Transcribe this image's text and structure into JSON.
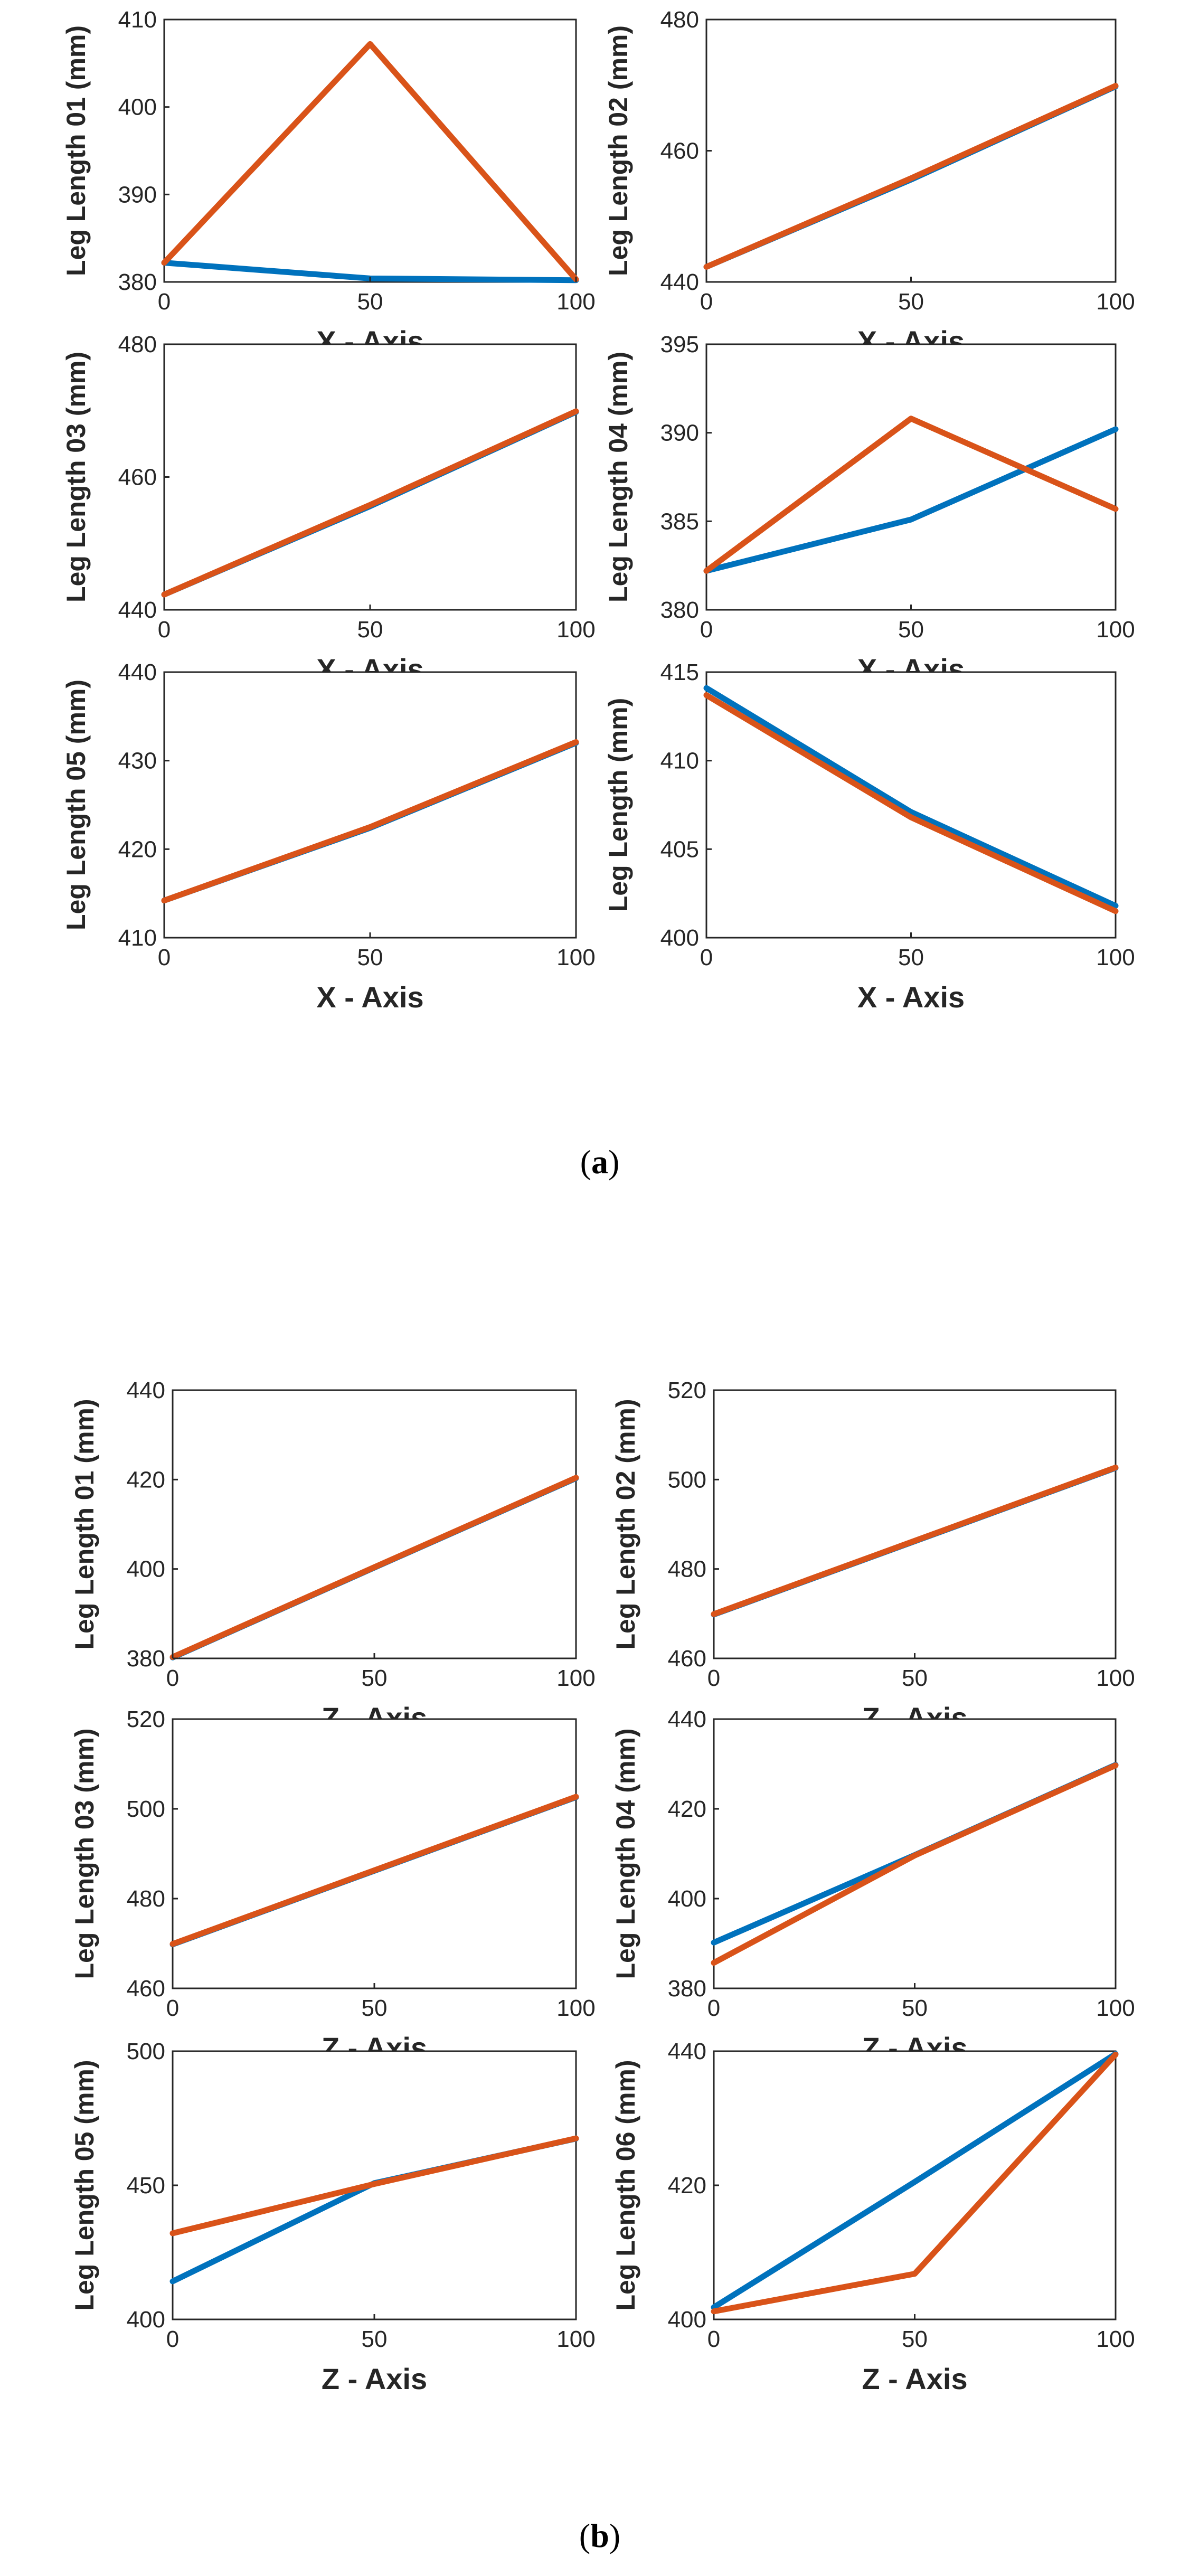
{
  "colors": {
    "series_1": "#0072BD",
    "series_2": "#D95319",
    "axis": "#262626"
  },
  "captions": {
    "a_letter": "a",
    "b_letter": "b"
  },
  "chart_data": [
    {
      "id": "a1",
      "type": "line",
      "xlabel": "X - Axis",
      "ylabel": "Leg Length 01 (mm)",
      "xlim": [
        0,
        100
      ],
      "ylim": [
        380,
        410
      ],
      "xticks": [
        0,
        50,
        100
      ],
      "yticks": [
        380,
        390,
        400,
        410
      ],
      "x": [
        0,
        50,
        100
      ],
      "series": [
        {
          "name": "series_1",
          "values": [
            382.2,
            380.4,
            380.2
          ]
        },
        {
          "name": "series_2",
          "values": [
            382.2,
            407.2,
            380.3
          ]
        }
      ]
    },
    {
      "id": "a2",
      "type": "line",
      "xlabel": "X - Axis",
      "ylabel": "Leg Length 02 (mm)",
      "xlim": [
        0,
        100
      ],
      "ylim": [
        440,
        480
      ],
      "xticks": [
        0,
        50,
        100
      ],
      "yticks": [
        440,
        460,
        480
      ],
      "x": [
        0,
        50,
        100
      ],
      "series": [
        {
          "name": "series_1",
          "values": [
            442.3,
            455.6,
            469.8
          ]
        },
        {
          "name": "series_2",
          "values": [
            442.3,
            455.8,
            469.9
          ]
        }
      ]
    },
    {
      "id": "a3",
      "type": "line",
      "xlabel": "X - Axis",
      "ylabel": "Leg Length 03 (mm)",
      "xlim": [
        0,
        100
      ],
      "ylim": [
        440,
        480
      ],
      "xticks": [
        0,
        50,
        100
      ],
      "yticks": [
        440,
        460,
        480
      ],
      "x": [
        0,
        50,
        100
      ],
      "series": [
        {
          "name": "series_1",
          "values": [
            442.3,
            455.6,
            469.8
          ]
        },
        {
          "name": "series_2",
          "values": [
            442.3,
            455.8,
            469.9
          ]
        }
      ]
    },
    {
      "id": "a4",
      "type": "line",
      "xlabel": "X - Axis",
      "ylabel": "Leg Length 04 (mm)",
      "xlim": [
        0,
        100
      ],
      "ylim": [
        380,
        395
      ],
      "xticks": [
        0,
        50,
        100
      ],
      "yticks": [
        380,
        385,
        390,
        395
      ],
      "x": [
        0,
        50,
        100
      ],
      "series": [
        {
          "name": "series_1",
          "values": [
            382.2,
            385.1,
            390.2
          ]
        },
        {
          "name": "series_2",
          "values": [
            382.2,
            390.8,
            385.7
          ]
        }
      ]
    },
    {
      "id": "a5",
      "type": "line",
      "xlabel": "X - Axis",
      "ylabel": "Leg Length 05 (mm)",
      "xlim": [
        0,
        100
      ],
      "ylim": [
        410,
        440
      ],
      "xticks": [
        0,
        50,
        100
      ],
      "yticks": [
        410,
        420,
        430,
        440
      ],
      "x": [
        0,
        50,
        100
      ],
      "series": [
        {
          "name": "series_1",
          "values": [
            414.2,
            422.4,
            432.0
          ]
        },
        {
          "name": "series_2",
          "values": [
            414.2,
            422.5,
            432.1
          ]
        }
      ]
    },
    {
      "id": "a6",
      "type": "line",
      "xlabel": "X - Axis",
      "ylabel": "Leg Length (mm)",
      "xlim": [
        0,
        100
      ],
      "ylim": [
        400,
        415
      ],
      "xticks": [
        0,
        50,
        100
      ],
      "yticks": [
        400,
        405,
        410,
        415
      ],
      "x": [
        0,
        50,
        100
      ],
      "series": [
        {
          "name": "series_1",
          "values": [
            414.1,
            407.1,
            401.8
          ]
        },
        {
          "name": "series_2",
          "values": [
            413.7,
            406.8,
            401.5
          ]
        }
      ]
    },
    {
      "id": "b1",
      "type": "line",
      "xlabel": "Z - Axis",
      "ylabel": "Leg Length 01 (mm)",
      "xlim": [
        0,
        100
      ],
      "ylim": [
        380,
        440
      ],
      "xticks": [
        0,
        50,
        100
      ],
      "yticks": [
        380,
        400,
        420,
        440
      ],
      "x": [
        0,
        50,
        100
      ],
      "series": [
        {
          "name": "series_1",
          "values": [
            380.2,
            400.3,
            420.3
          ]
        },
        {
          "name": "series_2",
          "values": [
            380.3,
            400.4,
            420.4
          ]
        }
      ]
    },
    {
      "id": "b2",
      "type": "line",
      "xlabel": "Z - Axis",
      "ylabel": "Leg Length 02 (mm)",
      "xlim": [
        0,
        100
      ],
      "ylim": [
        460,
        520
      ],
      "xticks": [
        0,
        50,
        100
      ],
      "yticks": [
        460,
        480,
        500,
        520
      ],
      "x": [
        0,
        50,
        100
      ],
      "series": [
        {
          "name": "series_1",
          "values": [
            469.8,
            486.2,
            502.6
          ]
        },
        {
          "name": "series_2",
          "values": [
            469.9,
            486.3,
            502.7
          ]
        }
      ]
    },
    {
      "id": "b3",
      "type": "line",
      "xlabel": "Z - Axis",
      "ylabel": "Leg Length 03 (mm)",
      "xlim": [
        0,
        100
      ],
      "ylim": [
        460,
        520
      ],
      "xticks": [
        0,
        50,
        100
      ],
      "yticks": [
        460,
        480,
        500,
        520
      ],
      "x": [
        0,
        50,
        100
      ],
      "series": [
        {
          "name": "series_1",
          "values": [
            469.8,
            486.2,
            502.6
          ]
        },
        {
          "name": "series_2",
          "values": [
            469.9,
            486.3,
            502.7
          ]
        }
      ]
    },
    {
      "id": "b4",
      "type": "line",
      "xlabel": "Z - Axis",
      "ylabel": "Leg Length 04 (mm)",
      "xlim": [
        0,
        100
      ],
      "ylim": [
        380,
        440
      ],
      "xticks": [
        0,
        50,
        100
      ],
      "yticks": [
        380,
        400,
        420,
        440
      ],
      "x": [
        0,
        50,
        100
      ],
      "series": [
        {
          "name": "series_1",
          "values": [
            390.2,
            409.7,
            429.8
          ]
        },
        {
          "name": "series_2",
          "values": [
            385.7,
            409.6,
            429.7
          ]
        }
      ]
    },
    {
      "id": "b5",
      "type": "line",
      "xlabel": "Z - Axis",
      "ylabel": "Leg Length 05 (mm)",
      "xlim": [
        0,
        100
      ],
      "ylim": [
        400,
        500
      ],
      "xticks": [
        0,
        50,
        100
      ],
      "yticks": [
        400,
        450,
        500
      ],
      "x": [
        0,
        50,
        100
      ],
      "series": [
        {
          "name": "series_1",
          "values": [
            414.2,
            450.8,
            467.4
          ]
        },
        {
          "name": "series_2",
          "values": [
            432.1,
            450.5,
            467.5
          ]
        }
      ]
    },
    {
      "id": "b6",
      "type": "line",
      "xlabel": "Z - Axis",
      "ylabel": "Leg Length 06 (mm)",
      "xlim": [
        0,
        100
      ],
      "ylim": [
        400,
        440
      ],
      "xticks": [
        0,
        50,
        100
      ],
      "yticks": [
        400,
        420,
        440
      ],
      "x": [
        0,
        50,
        100
      ],
      "series": [
        {
          "name": "series_1",
          "values": [
            401.8,
            420.5,
            439.6
          ]
        },
        {
          "name": "series_2",
          "values": [
            401.2,
            406.8,
            439.5
          ]
        }
      ]
    }
  ]
}
